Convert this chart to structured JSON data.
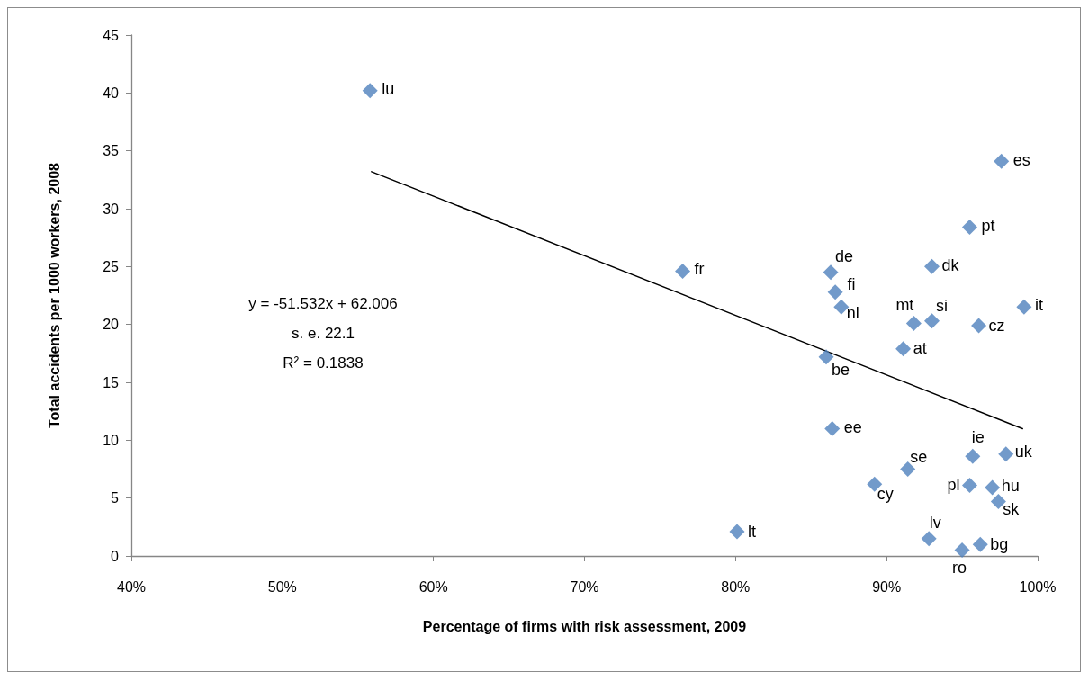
{
  "chart_data": {
    "type": "scatter",
    "xlabel": "Percentage of firms with risk assessment, 2009",
    "ylabel": "Total accidents per 1000 workers, 2008",
    "xlim": [
      0.4,
      1.0
    ],
    "xticks": [
      {
        "value": 0.4,
        "label": "40%"
      },
      {
        "value": 0.5,
        "label": "50%"
      },
      {
        "value": 0.6,
        "label": "60%"
      },
      {
        "value": 0.7,
        "label": "70%"
      },
      {
        "value": 0.8,
        "label": "80%"
      },
      {
        "value": 0.9,
        "label": "90%"
      },
      {
        "value": 1.0,
        "label": "100%"
      }
    ],
    "ylim": [
      0,
      45
    ],
    "yticks": [
      0,
      5,
      10,
      15,
      20,
      25,
      30,
      35,
      40,
      45
    ],
    "grid": false,
    "marker": "diamond",
    "series": [
      {
        "color": "#4f81bd",
        "x": [
          0.558,
          0.976,
          0.955,
          0.765,
          0.863,
          0.93,
          0.866,
          0.87,
          0.991,
          0.918,
          0.93,
          0.961,
          0.911,
          0.86,
          0.864,
          0.957,
          0.979,
          0.914,
          0.892,
          0.955,
          0.97,
          0.974,
          0.801,
          0.928,
          0.962,
          0.95
        ],
        "values": [
          40.2,
          34.1,
          28.4,
          24.6,
          24.5,
          25.0,
          22.8,
          21.5,
          21.5,
          20.1,
          20.3,
          19.9,
          17.9,
          17.2,
          11.0,
          8.6,
          8.8,
          7.5,
          6.2,
          6.1,
          5.9,
          4.7,
          2.1,
          1.5,
          1.0,
          0.5
        ]
      },
      {
        "type": "line",
        "color": "#000000",
        "marker": "none",
        "x": [
          0.559,
          0.99
        ],
        "values": [
          33.2,
          11.0
        ]
      }
    ],
    "annotations": [
      {
        "text": "lu",
        "x": 0.558,
        "y": 40.2
      },
      {
        "text": "es",
        "x": 0.976,
        "y": 34.1
      },
      {
        "text": "pt",
        "x": 0.955,
        "y": 28.4
      },
      {
        "text": "fr",
        "x": 0.765,
        "y": 24.6
      },
      {
        "text": "de",
        "x": 0.863,
        "y": 24.5
      },
      {
        "text": "dk",
        "x": 0.93,
        "y": 25.0
      },
      {
        "text": "fi",
        "x": 0.866,
        "y": 22.8
      },
      {
        "text": "nl",
        "x": 0.87,
        "y": 21.5
      },
      {
        "text": "it",
        "x": 0.991,
        "y": 21.5
      },
      {
        "text": "mt",
        "x": 0.918,
        "y": 20.1
      },
      {
        "text": "si",
        "x": 0.93,
        "y": 20.3
      },
      {
        "text": "cz",
        "x": 0.961,
        "y": 19.9
      },
      {
        "text": "at",
        "x": 0.911,
        "y": 17.9
      },
      {
        "text": "be",
        "x": 0.86,
        "y": 17.2
      },
      {
        "text": "ee",
        "x": 0.864,
        "y": 11.0
      },
      {
        "text": "ie",
        "x": 0.957,
        "y": 8.6
      },
      {
        "text": "uk",
        "x": 0.979,
        "y": 8.8
      },
      {
        "text": "se",
        "x": 0.914,
        "y": 7.5
      },
      {
        "text": "cy",
        "x": 0.892,
        "y": 6.2
      },
      {
        "text": "pl",
        "x": 0.955,
        "y": 6.1
      },
      {
        "text": "hu",
        "x": 0.97,
        "y": 5.9
      },
      {
        "text": "sk",
        "x": 0.974,
        "y": 4.7
      },
      {
        "text": "lt",
        "x": 0.801,
        "y": 2.1
      },
      {
        "text": "lv",
        "x": 0.928,
        "y": 1.5
      },
      {
        "text": "bg",
        "x": 0.962,
        "y": 1.0
      },
      {
        "text": "ro",
        "x": 0.95,
        "y": 0.5
      },
      "y = -51.532x + 62.006",
      "s. e. 22.1",
      "R² = 0.1838"
    ]
  }
}
